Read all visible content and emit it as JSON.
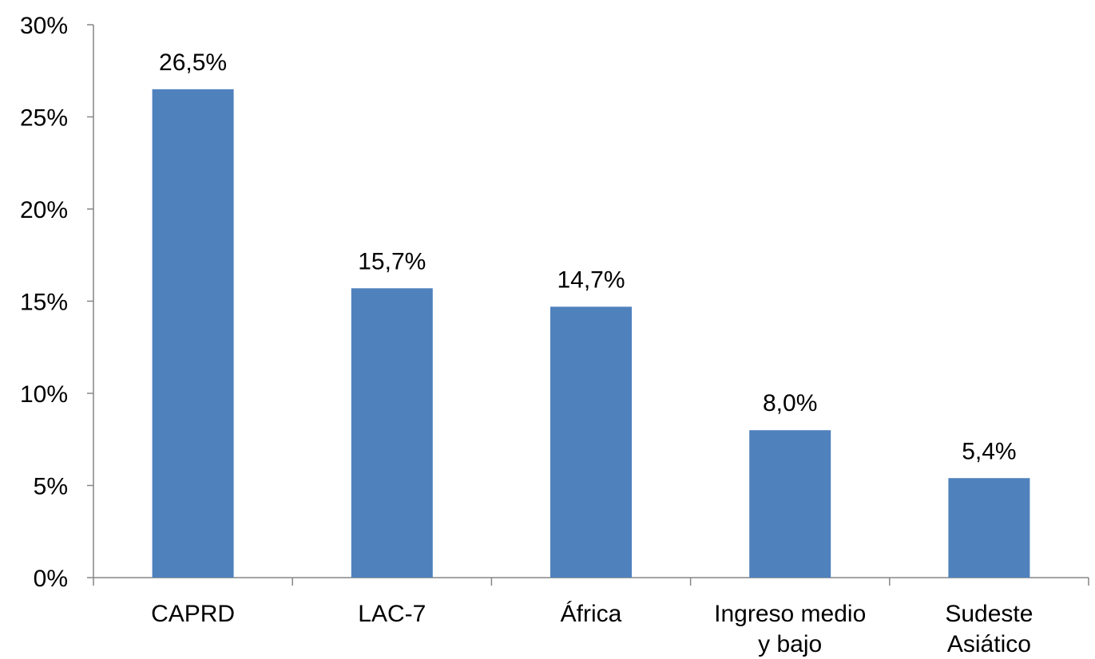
{
  "chart_data": {
    "type": "bar",
    "title": "",
    "xlabel": "",
    "ylabel": "",
    "categories": [
      [
        "CAPRD"
      ],
      [
        "LAC-7"
      ],
      [
        "África"
      ],
      [
        "Ingreso medio",
        "y bajo"
      ],
      [
        "Sudeste",
        "Asiático"
      ]
    ],
    "values": [
      26.5,
      15.7,
      14.7,
      8.0,
      5.4
    ],
    "data_labels": [
      "26,5%",
      "15,7%",
      "14,7%",
      "8,0%",
      "5,4%"
    ],
    "ylim": [
      0,
      30
    ],
    "yticks": [
      0,
      5,
      10,
      15,
      20,
      25,
      30
    ],
    "ytick_labels": [
      "0%",
      "5%",
      "10%",
      "15%",
      "20%",
      "25%",
      "30%"
    ],
    "grid": false,
    "legend": "none",
    "bar_color": "#4f81bd",
    "axis_color": "#868686"
  }
}
